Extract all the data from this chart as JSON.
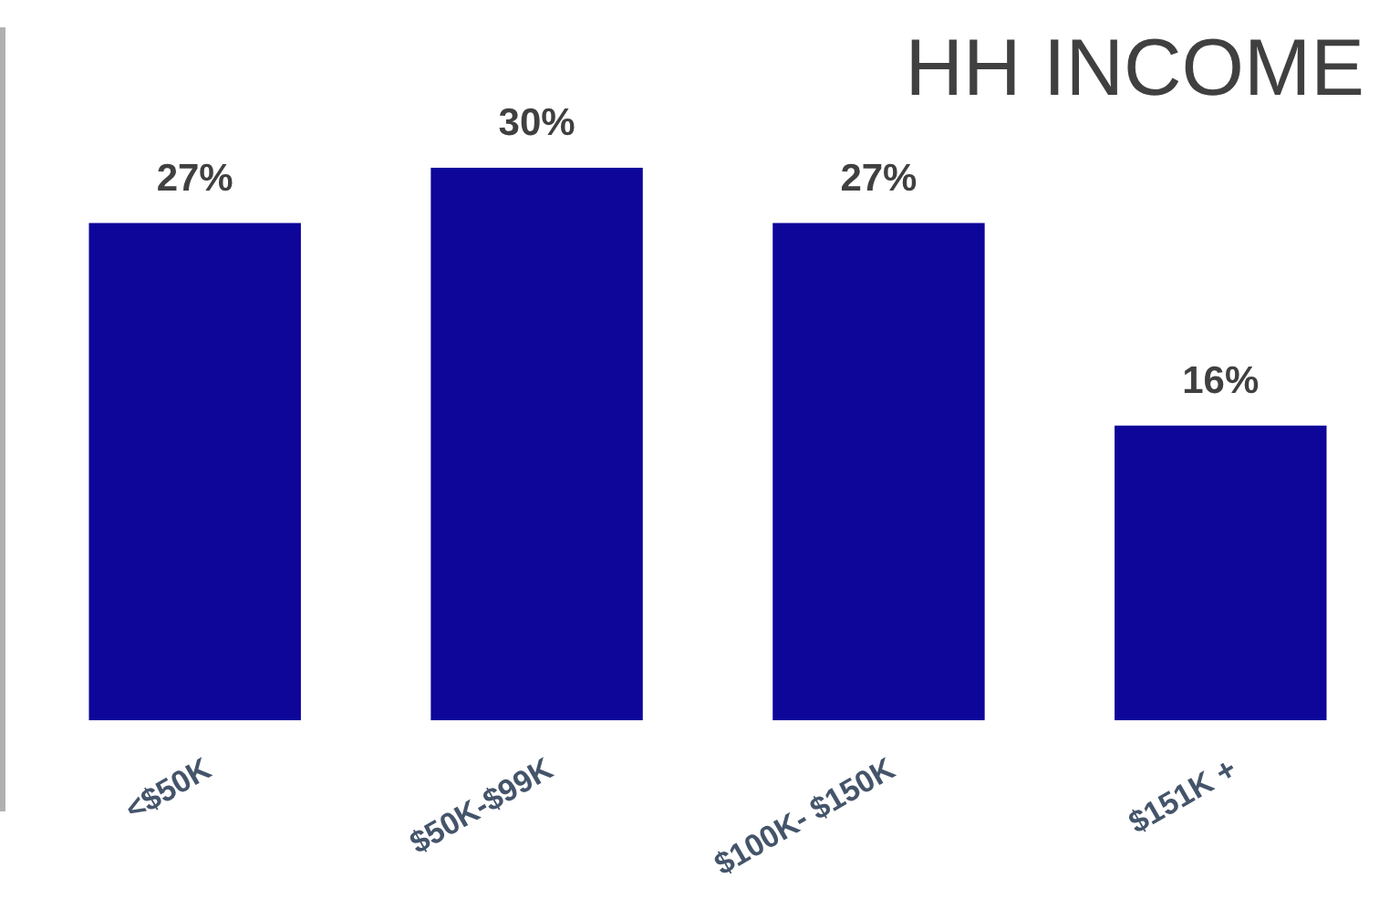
{
  "chart_data": {
    "type": "bar",
    "title": "HH INCOME",
    "categories": [
      "<$50K",
      "$50K-$99K",
      "$100K- $150K",
      "$151K +"
    ],
    "values": [
      27,
      30,
      27,
      16
    ],
    "value_labels": [
      "27%",
      "30%",
      "27%",
      "16%"
    ],
    "color": "#0e0699"
  }
}
